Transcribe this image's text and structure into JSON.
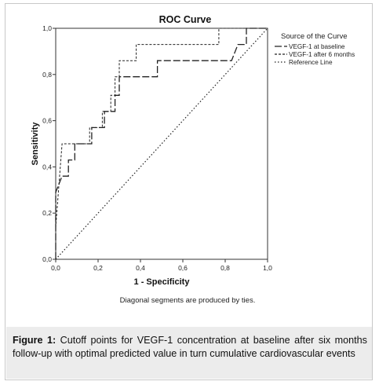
{
  "chart_data": {
    "type": "line",
    "title": "ROC Curve",
    "xlabel": "1 - Specificity",
    "ylabel": "Sensitivity",
    "xlim": [
      0,
      1
    ],
    "ylim": [
      0,
      1
    ],
    "x_ticks": [
      "0,0",
      "0,2",
      "0,4",
      "0,6",
      "0,8",
      "1,0"
    ],
    "y_ticks": [
      "0,0",
      "0,2",
      "0,4",
      "0,6",
      "0,8",
      "1,0"
    ],
    "grid": false,
    "legend_title": "Source of the Curve",
    "legend_position": "right",
    "note": "Diagonal segments are produced by ties.",
    "series": [
      {
        "name": "VEGF-1 at baseline",
        "style": "longdash",
        "points": [
          [
            0.0,
            0.0
          ],
          [
            0.0,
            0.14
          ],
          [
            0.0,
            0.21
          ],
          [
            0.0,
            0.29
          ],
          [
            0.03,
            0.36
          ],
          [
            0.06,
            0.36
          ],
          [
            0.06,
            0.43
          ],
          [
            0.09,
            0.43
          ],
          [
            0.09,
            0.5
          ],
          [
            0.17,
            0.5
          ],
          [
            0.17,
            0.57
          ],
          [
            0.23,
            0.57
          ],
          [
            0.23,
            0.64
          ],
          [
            0.28,
            0.64
          ],
          [
            0.28,
            0.71
          ],
          [
            0.3,
            0.71
          ],
          [
            0.3,
            0.79
          ],
          [
            0.48,
            0.79
          ],
          [
            0.48,
            0.86
          ],
          [
            0.83,
            0.86
          ],
          [
            0.86,
            0.93
          ],
          [
            0.9,
            0.93
          ],
          [
            0.9,
            1.0
          ],
          [
            1.0,
            1.0
          ]
        ]
      },
      {
        "name": "VEGF-1 after 6 months",
        "style": "shortdash",
        "points": [
          [
            0.0,
            0.0
          ],
          [
            0.0,
            0.14
          ],
          [
            0.03,
            0.5
          ],
          [
            0.16,
            0.5
          ],
          [
            0.16,
            0.57
          ],
          [
            0.22,
            0.57
          ],
          [
            0.22,
            0.64
          ],
          [
            0.26,
            0.64
          ],
          [
            0.26,
            0.71
          ],
          [
            0.28,
            0.71
          ],
          [
            0.28,
            0.79
          ],
          [
            0.3,
            0.79
          ],
          [
            0.3,
            0.86
          ],
          [
            0.38,
            0.86
          ],
          [
            0.38,
            0.93
          ],
          [
            0.77,
            0.93
          ],
          [
            0.77,
            1.0
          ],
          [
            1.0,
            1.0
          ]
        ]
      },
      {
        "name": "Reference Line",
        "style": "dotted",
        "points": [
          [
            0.0,
            0.0
          ],
          [
            1.0,
            1.0
          ]
        ]
      }
    ]
  },
  "caption": {
    "label": "Figure 1:",
    "text": " Cutoff points for VEGF-1 concentration at baseline after six months follow-up with optimal predicted value in turn cumulative cardiovascular events"
  },
  "colors": {
    "line": "#222222",
    "axis": "#333333",
    "caption_bg": "#ececec"
  }
}
